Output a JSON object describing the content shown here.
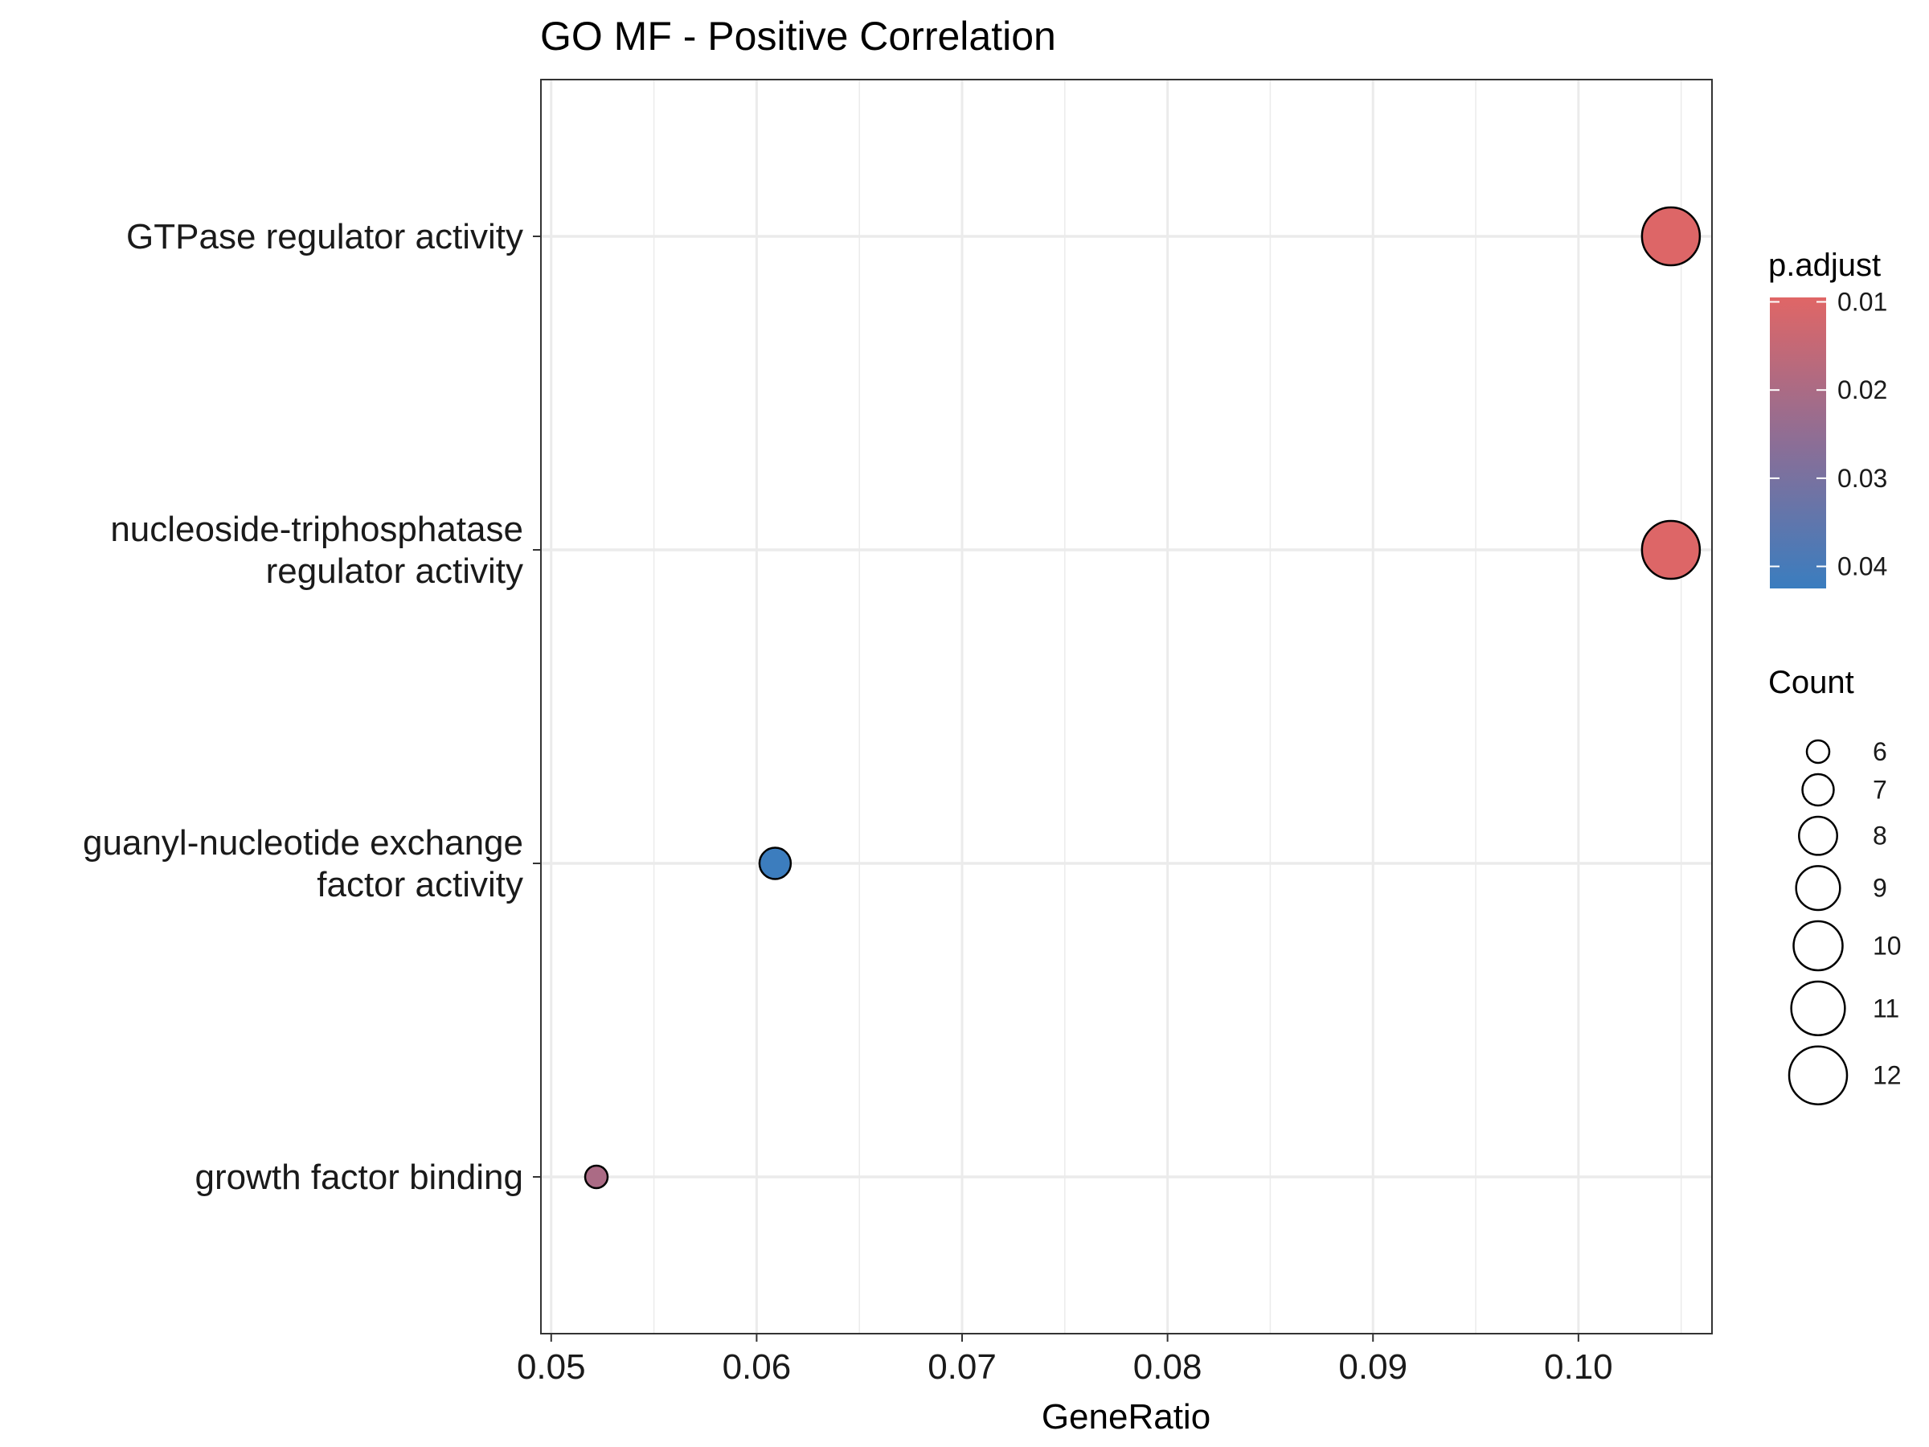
{
  "chart_data": {
    "type": "scatter",
    "title": "GO MF - Positive Correlation",
    "xlabel": "GeneRatio",
    "ylabel": "",
    "xlim": [
      0.0495,
      0.1065
    ],
    "xticks": [
      "0.05",
      "0.06",
      "0.07",
      "0.08",
      "0.09",
      "0.10"
    ],
    "categories": [
      [
        "GTPase regulator activity"
      ],
      [
        "nucleoside-triphosphatase",
        "regulator activity"
      ],
      [
        "guanyl-nucleotide exchange",
        "factor activity"
      ],
      [
        "growth factor binding"
      ]
    ],
    "points": [
      {
        "category_index": 0,
        "x": 0.1045,
        "count": 12,
        "p_adjust": 0.01
      },
      {
        "category_index": 1,
        "x": 0.1045,
        "count": 12,
        "p_adjust": 0.01
      },
      {
        "category_index": 2,
        "x": 0.0609,
        "count": 7,
        "p_adjust": 0.042
      },
      {
        "category_index": 3,
        "x": 0.0522,
        "count": 6,
        "p_adjust": 0.02
      }
    ],
    "color_legend": {
      "title": "p.adjust",
      "ticks": [
        "0.01",
        "0.02",
        "0.03",
        "0.04"
      ],
      "low_color": "#e06666",
      "high_color": "#3a7dbf",
      "range": [
        0.0095,
        0.0425
      ]
    },
    "size_legend": {
      "title": "Count",
      "values": [
        6,
        7,
        8,
        9,
        10,
        11,
        12
      ]
    },
    "grid": true,
    "legend_position": "right"
  }
}
